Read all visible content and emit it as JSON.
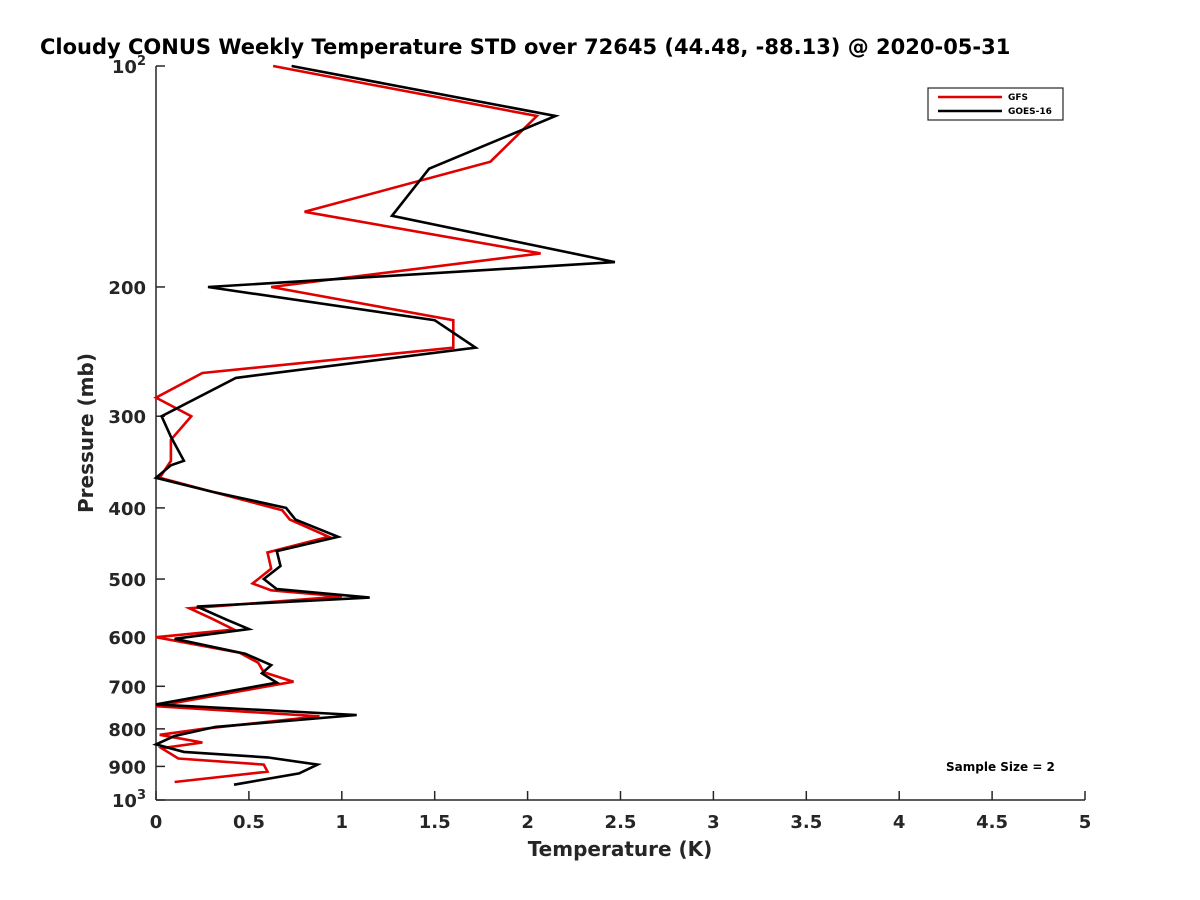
{
  "chart_data": {
    "type": "line",
    "title": "Cloudy CONUS Weekly Temperature STD over 72645 (44.48, -88.13) @ 2020-05-31",
    "xlabel": "Temperature (K)",
    "ylabel": "Pressure (mb)",
    "xlim": [
      0,
      5
    ],
    "ylim": [
      100,
      1000
    ],
    "y_scale": "log",
    "y_reversed": true,
    "grid": false,
    "legend_position": "top-right",
    "x_ticks": [
      0,
      0.5,
      1,
      1.5,
      2,
      2.5,
      3,
      3.5,
      4,
      4.5,
      5
    ],
    "x_tick_labels": [
      "0",
      "0.5",
      "1",
      "1.5",
      "2",
      "2.5",
      "3",
      "3.5",
      "4",
      "4.5",
      "5"
    ],
    "y_ticks": [
      100,
      200,
      300,
      400,
      500,
      600,
      700,
      800,
      900,
      1000
    ],
    "y_tick_labels": [
      {
        "text": "10",
        "sup": "2"
      },
      {
        "text": "200",
        "sup": ""
      },
      {
        "text": "300",
        "sup": ""
      },
      {
        "text": "400",
        "sup": ""
      },
      {
        "text": "500",
        "sup": ""
      },
      {
        "text": "600",
        "sup": ""
      },
      {
        "text": "700",
        "sup": ""
      },
      {
        "text": "800",
        "sup": ""
      },
      {
        "text": "900",
        "sup": ""
      },
      {
        "text": "10",
        "sup": "3"
      }
    ],
    "annotation": "Sample Size = 2",
    "series": [
      {
        "name": "GFS",
        "color": "#e00000",
        "x": [
          0.63,
          2.05,
          1.8,
          0.8,
          2.07,
          0.62,
          1.6,
          1.6,
          0.25,
          0.0,
          0.19,
          0.08,
          0.08,
          0.02,
          0.3,
          0.68,
          0.72,
          0.93,
          0.6,
          0.62,
          0.52,
          0.62,
          1.0,
          0.18,
          0.3,
          0.42,
          0.0,
          0.45,
          0.55,
          0.58,
          0.74,
          0.0,
          0.88,
          0.25,
          0.02,
          0.25,
          0.03,
          0.12,
          0.58,
          0.6,
          0.1
        ],
        "y": [
          100,
          117,
          135,
          158,
          180,
          200,
          222,
          242,
          262,
          283,
          300,
          323,
          345,
          364,
          380,
          403,
          415,
          438,
          460,
          484,
          507,
          518,
          528,
          548,
          566,
          586,
          600,
          630,
          650,
          670,
          690,
          745,
          769,
          800,
          815,
          835,
          850,
          878,
          895,
          915,
          945
        ]
      },
      {
        "name": "GOES-16",
        "color": "#000000",
        "x": [
          0.73,
          2.15,
          1.47,
          1.27,
          2.47,
          0.28,
          1.5,
          1.72,
          0.43,
          0.03,
          0.08,
          0.15,
          0.08,
          0.0,
          0.3,
          0.7,
          0.75,
          0.98,
          0.65,
          0.67,
          0.58,
          0.65,
          1.15,
          0.22,
          0.38,
          0.5,
          0.1,
          0.48,
          0.62,
          0.57,
          0.65,
          0.0,
          1.08,
          0.32,
          0.1,
          0.0,
          0.15,
          0.6,
          0.87,
          0.77,
          0.42
        ],
        "y": [
          100,
          117,
          138,
          160,
          185,
          200,
          222,
          242,
          266,
          300,
          320,
          345,
          350,
          364,
          380,
          400,
          415,
          438,
          458,
          480,
          500,
          516,
          530,
          545,
          568,
          585,
          603,
          632,
          655,
          672,
          692,
          741,
          766,
          795,
          818,
          840,
          860,
          875,
          895,
          920,
          953
        ]
      }
    ]
  }
}
